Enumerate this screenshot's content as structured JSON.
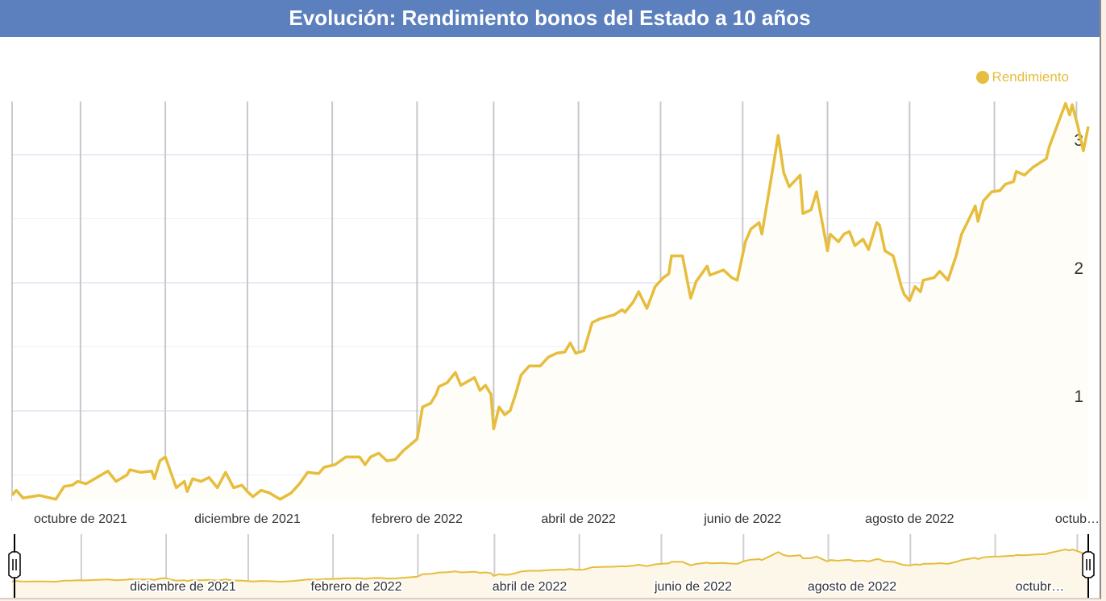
{
  "title": "Evolución: Rendimiento bonos del Estado a 10 años",
  "legend": {
    "label": "Rendimiento",
    "color": "#e6bd3c"
  },
  "chart_data": {
    "type": "line",
    "title": "Evolución: Rendimiento bonos del Estado a 10 años",
    "xlabel": "",
    "ylabel": "",
    "x_unit": "days since 2021-09-06",
    "xlim": [
      0,
      393
    ],
    "ylim": [
      0.31,
      3.4
    ],
    "y_ticks": [
      1,
      2,
      3
    ],
    "y_tick_labels": [
      "1",
      "2",
      "3"
    ],
    "y_minor_gridlines": [
      0.5,
      1.5,
      2.5
    ],
    "x_tick_labels": [
      {
        "day": 25,
        "label": "octubre de 2021"
      },
      {
        "day": 86,
        "label": "diciembre de 2021"
      },
      {
        "day": 148,
        "label": "febrero de 2022"
      },
      {
        "day": 207,
        "label": "abril de 2022"
      },
      {
        "day": 267,
        "label": "junio de 2022"
      },
      {
        "day": 328,
        "label": "agosto de 2022"
      },
      {
        "day": 389,
        "label": "octub…"
      }
    ],
    "month_gridline_days": [
      25,
      56,
      86,
      117,
      148,
      176,
      207,
      237,
      267,
      298,
      328,
      359,
      389
    ],
    "navigator_labels": [
      "diciembre de 2021",
      "febrero de 2022",
      "abril de 2022",
      "junio de 2022",
      "agosto de 2022",
      "octubr…"
    ],
    "grid": true,
    "legend_position": "top-right",
    "series": [
      {
        "name": "Rendimiento",
        "color": "#e6bd3c",
        "points": [
          [
            0,
            0.34
          ],
          [
            1.5,
            0.38
          ],
          [
            4,
            0.32
          ],
          [
            10,
            0.34
          ],
          [
            16,
            0.31
          ],
          [
            19,
            0.41
          ],
          [
            22,
            0.42
          ],
          [
            24,
            0.45
          ],
          [
            27,
            0.43
          ],
          [
            31,
            0.48
          ],
          [
            35,
            0.53
          ],
          [
            38,
            0.45
          ],
          [
            42,
            0.5
          ],
          [
            43,
            0.54
          ],
          [
            47,
            0.52
          ],
          [
            51,
            0.53
          ],
          [
            52,
            0.47
          ],
          [
            54,
            0.61
          ],
          [
            56,
            0.64
          ],
          [
            60,
            0.4
          ],
          [
            63,
            0.45
          ],
          [
            64,
            0.37
          ],
          [
            66,
            0.47
          ],
          [
            69,
            0.45
          ],
          [
            72,
            0.48
          ],
          [
            75,
            0.4
          ],
          [
            78,
            0.52
          ],
          [
            81,
            0.4
          ],
          [
            84,
            0.42
          ],
          [
            86,
            0.37
          ],
          [
            88,
            0.33
          ],
          [
            91,
            0.38
          ],
          [
            94,
            0.36
          ],
          [
            98,
            0.31
          ],
          [
            102,
            0.36
          ],
          [
            105,
            0.43
          ],
          [
            108,
            0.52
          ],
          [
            112,
            0.51
          ],
          [
            114,
            0.56
          ],
          [
            118,
            0.58
          ],
          [
            122,
            0.64
          ],
          [
            127,
            0.64
          ],
          [
            129,
            0.58
          ],
          [
            131,
            0.64
          ],
          [
            134,
            0.67
          ],
          [
            137,
            0.61
          ],
          [
            140,
            0.62
          ],
          [
            143,
            0.69
          ],
          [
            148,
            0.78
          ],
          [
            150,
            1.03
          ],
          [
            153,
            1.06
          ],
          [
            155,
            1.13
          ],
          [
            156,
            1.19
          ],
          [
            159,
            1.22
          ],
          [
            162,
            1.3
          ],
          [
            164,
            1.2
          ],
          [
            169,
            1.26
          ],
          [
            171,
            1.16
          ],
          [
            173,
            1.2
          ],
          [
            175,
            1.13
          ],
          [
            176,
            0.86
          ],
          [
            178,
            1.03
          ],
          [
            180,
            0.97
          ],
          [
            182,
            1.0
          ],
          [
            184,
            1.13
          ],
          [
            186,
            1.28
          ],
          [
            189,
            1.35
          ],
          [
            193,
            1.35
          ],
          [
            196,
            1.42
          ],
          [
            199,
            1.45
          ],
          [
            202,
            1.46
          ],
          [
            204,
            1.53
          ],
          [
            206,
            1.45
          ],
          [
            209,
            1.47
          ],
          [
            212,
            1.69
          ],
          [
            215,
            1.72
          ],
          [
            220,
            1.75
          ],
          [
            223,
            1.79
          ],
          [
            224,
            1.77
          ],
          [
            227,
            1.85
          ],
          [
            229,
            1.93
          ],
          [
            232,
            1.8
          ],
          [
            235,
            1.97
          ],
          [
            238,
            2.04
          ],
          [
            240,
            2.07
          ],
          [
            241,
            2.21
          ],
          [
            245,
            2.21
          ],
          [
            248,
            1.88
          ],
          [
            250,
            2.01
          ],
          [
            254,
            2.13
          ],
          [
            255,
            2.06
          ],
          [
            260,
            2.1
          ],
          [
            263,
            2.04
          ],
          [
            265,
            2.02
          ],
          [
            268,
            2.32
          ],
          [
            270,
            2.42
          ],
          [
            273,
            2.47
          ],
          [
            274,
            2.38
          ],
          [
            277,
            2.76
          ],
          [
            280,
            3.15
          ],
          [
            282,
            2.86
          ],
          [
            284,
            2.75
          ],
          [
            288,
            2.84
          ],
          [
            289,
            2.54
          ],
          [
            292,
            2.57
          ],
          [
            294,
            2.71
          ],
          [
            298,
            2.25
          ],
          [
            299,
            2.38
          ],
          [
            302,
            2.32
          ],
          [
            304,
            2.38
          ],
          [
            306,
            2.4
          ],
          [
            308,
            2.29
          ],
          [
            311,
            2.34
          ],
          [
            313,
            2.26
          ],
          [
            316,
            2.47
          ],
          [
            317,
            2.45
          ],
          [
            319,
            2.25
          ],
          [
            322,
            2.21
          ],
          [
            325,
            1.97
          ],
          [
            326,
            1.91
          ],
          [
            328,
            1.86
          ],
          [
            330,
            1.97
          ],
          [
            332,
            1.93
          ],
          [
            333,
            2.02
          ],
          [
            337,
            2.04
          ],
          [
            339,
            2.09
          ],
          [
            342,
            2.02
          ],
          [
            345,
            2.21
          ],
          [
            347,
            2.38
          ],
          [
            350,
            2.51
          ],
          [
            352,
            2.6
          ],
          [
            353,
            2.48
          ],
          [
            355,
            2.64
          ],
          [
            358,
            2.71
          ],
          [
            361,
            2.72
          ],
          [
            363,
            2.77
          ],
          [
            366,
            2.79
          ],
          [
            367,
            2.87
          ],
          [
            370,
            2.84
          ],
          [
            373,
            2.9
          ],
          [
            378,
            2.97
          ],
          [
            379,
            3.06
          ],
          [
            382,
            3.23
          ],
          [
            385,
            3.4
          ],
          [
            386.5,
            3.31
          ],
          [
            387.4,
            3.39
          ],
          [
            389.4,
            3.23
          ],
          [
            391.5,
            3.03
          ],
          [
            393.3,
            3.22
          ]
        ]
      }
    ]
  }
}
